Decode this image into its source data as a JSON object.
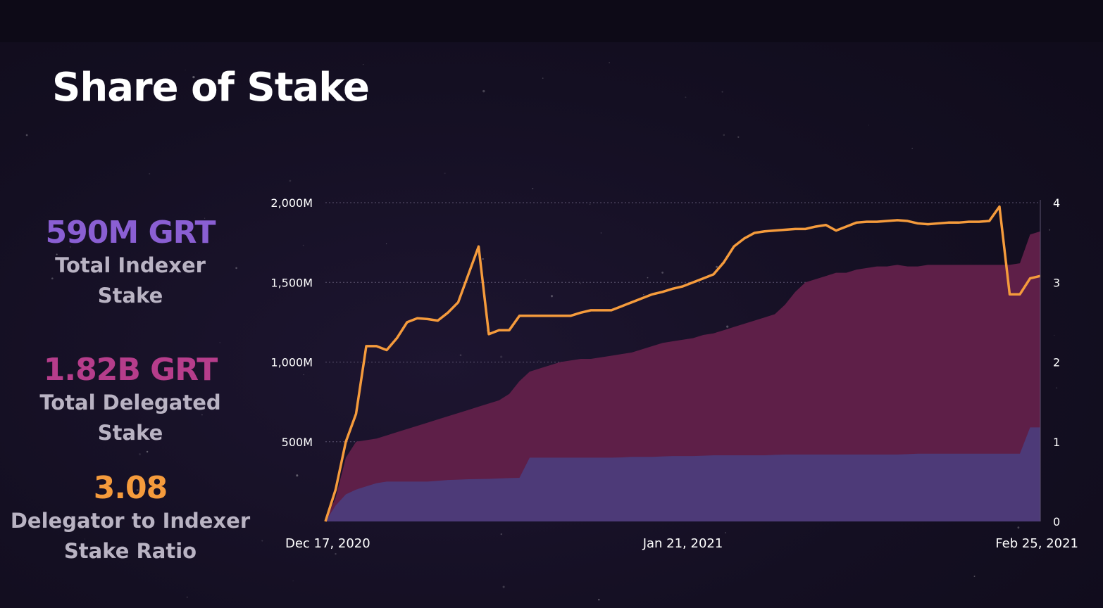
{
  "title": "Share of Stake",
  "stats": {
    "indexer": {
      "value": "590M GRT",
      "label_line1": "Total Indexer",
      "label_line2": "Stake",
      "color": "#8a5fd3"
    },
    "delegated": {
      "value": "1.82B GRT",
      "label_line1": "Total Delegated",
      "label_line2": "Stake",
      "color": "#b63d8b"
    },
    "ratio": {
      "value": "3.08",
      "label_line1": "Delegator to Indexer",
      "label_line2": "Stake Ratio",
      "color": "#f59b3c"
    }
  },
  "chart_data": {
    "type": "area",
    "x": [
      "2020-12-17",
      "2020-12-18",
      "2020-12-19",
      "2020-12-20",
      "2020-12-21",
      "2020-12-22",
      "2020-12-23",
      "2020-12-24",
      "2020-12-25",
      "2020-12-26",
      "2020-12-27",
      "2020-12-28",
      "2020-12-29",
      "2020-12-30",
      "2020-12-31",
      "2021-01-01",
      "2021-01-02",
      "2021-01-03",
      "2021-01-04",
      "2021-01-05",
      "2021-01-06",
      "2021-01-07",
      "2021-01-08",
      "2021-01-09",
      "2021-01-10",
      "2021-01-11",
      "2021-01-12",
      "2021-01-13",
      "2021-01-14",
      "2021-01-15",
      "2021-01-16",
      "2021-01-17",
      "2021-01-18",
      "2021-01-19",
      "2021-01-20",
      "2021-01-21",
      "2021-01-22",
      "2021-01-23",
      "2021-01-24",
      "2021-01-25",
      "2021-01-26",
      "2021-01-27",
      "2021-01-28",
      "2021-01-29",
      "2021-01-30",
      "2021-01-31",
      "2021-02-01",
      "2021-02-02",
      "2021-02-03",
      "2021-02-04",
      "2021-02-05",
      "2021-02-06",
      "2021-02-07",
      "2021-02-08",
      "2021-02-09",
      "2021-02-10",
      "2021-02-11",
      "2021-02-12",
      "2021-02-13",
      "2021-02-14",
      "2021-02-15",
      "2021-02-16",
      "2021-02-17",
      "2021-02-18",
      "2021-02-19",
      "2021-02-20",
      "2021-02-21",
      "2021-02-22",
      "2021-02-23",
      "2021-02-24",
      "2021-02-25"
    ],
    "x_tick_labels": [
      "Dec 17, 2020",
      "Jan 21, 2021",
      "Feb 25, 2021"
    ],
    "x_tick_dates": [
      "2020-12-17",
      "2021-01-21",
      "2021-02-25"
    ],
    "y_left": {
      "ticks": [
        500,
        1000,
        1500,
        2000
      ],
      "tick_labels": [
        "500M",
        "1,000M",
        "1,500M",
        "2,000M"
      ],
      "range": [
        0,
        2000
      ],
      "unit": "M GRT"
    },
    "y_right": {
      "ticks": [
        0,
        1,
        2,
        3,
        4
      ],
      "tick_labels": [
        "0",
        "1",
        "2",
        "3",
        "4"
      ],
      "range": [
        0,
        4
      ]
    },
    "grid": true,
    "series": [
      {
        "axis": "left",
        "kind": "area",
        "color": "#4d3a78",
        "values": [
          0,
          100,
          170,
          200,
          220,
          240,
          250,
          250,
          250,
          250,
          250,
          255,
          260,
          262,
          265,
          266,
          267,
          270,
          272,
          274,
          400,
          400,
          400,
          400,
          400,
          400,
          400,
          400,
          400,
          402,
          405,
          405,
          405,
          408,
          410,
          410,
          410,
          412,
          415,
          415,
          415,
          415,
          415,
          415,
          418,
          420,
          420,
          420,
          420,
          420,
          420,
          420,
          420,
          420,
          420,
          420,
          420,
          422,
          425,
          425,
          425,
          425,
          425,
          425,
          425,
          425,
          425,
          425,
          425,
          590,
          590
        ]
      },
      {
        "axis": "left",
        "kind": "area",
        "color": "#5e1f48",
        "values": [
          0,
          150,
          400,
          500,
          510,
          520,
          540,
          560,
          580,
          600,
          620,
          640,
          660,
          680,
          700,
          720,
          740,
          760,
          800,
          880,
          940,
          960,
          980,
          1000,
          1010,
          1020,
          1020,
          1030,
          1040,
          1050,
          1060,
          1080,
          1100,
          1120,
          1130,
          1140,
          1150,
          1170,
          1180,
          1200,
          1220,
          1240,
          1260,
          1280,
          1300,
          1360,
          1440,
          1500,
          1520,
          1540,
          1560,
          1560,
          1580,
          1590,
          1600,
          1600,
          1610,
          1600,
          1600,
          1610,
          1610,
          1610,
          1610,
          1610,
          1610,
          1610,
          1610,
          1610,
          1620,
          1800,
          1820
        ]
      },
      {
        "axis": "right",
        "kind": "line",
        "color": "#f59b3c",
        "values": [
          0,
          0.4,
          1.0,
          1.35,
          2.2,
          2.2,
          2.15,
          2.3,
          2.5,
          2.55,
          2.54,
          2.52,
          2.62,
          2.75,
          3.1,
          3.45,
          2.35,
          2.4,
          2.4,
          2.58,
          2.58,
          2.58,
          2.58,
          2.58,
          2.58,
          2.62,
          2.65,
          2.65,
          2.65,
          2.7,
          2.75,
          2.8,
          2.85,
          2.88,
          2.92,
          2.95,
          3.0,
          3.05,
          3.1,
          3.25,
          3.45,
          3.55,
          3.62,
          3.64,
          3.65,
          3.66,
          3.67,
          3.67,
          3.7,
          3.72,
          3.65,
          3.7,
          3.75,
          3.76,
          3.76,
          3.77,
          3.78,
          3.77,
          3.74,
          3.73,
          3.74,
          3.75,
          3.75,
          3.76,
          3.76,
          3.77,
          3.95,
          2.85,
          2.85,
          3.05,
          3.08
        ]
      }
    ]
  }
}
